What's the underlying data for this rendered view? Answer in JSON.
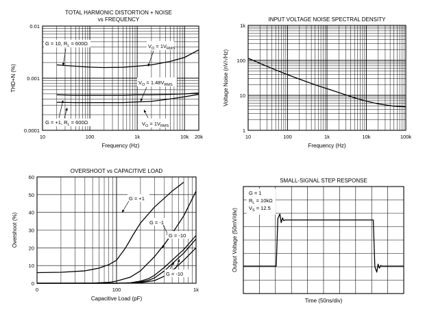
{
  "chart_data": [
    {
      "id": "thd",
      "type": "line",
      "title": "TOTAL HARMONIC DISTORTION + NOISE",
      "subtitle": "vs FREQUENCY",
      "xlabel": "Frequency (Hz)",
      "ylabel": "THD+N (%)",
      "x_scale": "log",
      "y_scale": "log",
      "xlim": [
        10,
        20000
      ],
      "ylim": [
        0.0001,
        0.01
      ],
      "x_ticks": [
        {
          "v": 10,
          "t": "10"
        },
        {
          "v": 100,
          "t": "100"
        },
        {
          "v": 1000,
          "t": "1k"
        },
        {
          "v": 10000,
          "t": "10k"
        },
        {
          "v": 20000,
          "t": "20k"
        }
      ],
      "y_ticks": [
        {
          "v": 0.0001,
          "t": "0.0001"
        },
        {
          "v": 0.001,
          "t": "0.001"
        },
        {
          "v": 0.01,
          "t": "0.01"
        }
      ],
      "grid": true,
      "series": [
        {
          "x": [
            20,
            50,
            100,
            200,
            500,
            1000,
            2000,
            5000,
            10000,
            20000
          ],
          "y": [
            0.0018,
            0.0017,
            0.00163,
            0.0016,
            0.00162,
            0.0017,
            0.0018,
            0.0021,
            0.0025,
            0.0035
          ]
        },
        {
          "x": [
            20,
            50,
            100,
            200,
            500,
            1000,
            2000,
            5000,
            10000,
            20000
          ],
          "y": [
            0.00048,
            0.00047,
            0.00047,
            0.00047,
            0.00047,
            0.00048,
            0.00048,
            0.00049,
            0.0005,
            0.00052
          ]
        },
        {
          "x": [
            20,
            50,
            100,
            200,
            500,
            1000,
            2000,
            5000,
            10000,
            20000
          ],
          "y": [
            0.000345,
            0.00034,
            0.00034,
            0.00034,
            0.00034,
            0.00035,
            0.00036,
            0.0004,
            0.00044,
            0.00049
          ]
        }
      ],
      "annotations": [
        {
          "key": "a1",
          "parts": [
            {
              "t": "G = 10, R"
            },
            {
              "t": "L",
              "sub": true
            },
            {
              "t": " = 600Ω"
            }
          ]
        },
        {
          "key": "a2",
          "parts": [
            {
              "t": "V"
            },
            {
              "t": "O",
              "sub": true
            },
            {
              "t": " = 1V"
            },
            {
              "t": "RMS",
              "sub": true
            }
          ]
        },
        {
          "key": "a3",
          "parts": [
            {
              "t": "V"
            },
            {
              "t": "O",
              "sub": true
            },
            {
              "t": " = 1.48V"
            },
            {
              "t": "RMS",
              "sub": true
            }
          ]
        },
        {
          "key": "a4",
          "parts": [
            {
              "t": "G = +1, R"
            },
            {
              "t": "L",
              "sub": true
            },
            {
              "t": " = 600Ω"
            }
          ]
        },
        {
          "key": "a5",
          "parts": [
            {
              "t": "V"
            },
            {
              "t": "O",
              "sub": true
            },
            {
              "t": " = 1V"
            },
            {
              "t": "RMS",
              "sub": true
            }
          ]
        }
      ]
    },
    {
      "id": "noise",
      "type": "line",
      "title": "INPUT VOLTAGE NOISE SPECTRAL DENSITY",
      "xlabel": "Frequency (Hz)",
      "ylabel": "Voltage Noise (nV/√Hz)",
      "x_scale": "log",
      "y_scale": "log",
      "xlim": [
        10,
        100000
      ],
      "ylim": [
        1,
        1000
      ],
      "x_ticks": [
        {
          "v": 10,
          "t": "10"
        },
        {
          "v": 100,
          "t": "100"
        },
        {
          "v": 1000,
          "t": "1k"
        },
        {
          "v": 10000,
          "t": "10k"
        },
        {
          "v": 100000,
          "t": "100k"
        }
      ],
      "y_ticks": [
        {
          "v": 1,
          "t": "1"
        },
        {
          "v": 10,
          "t": "10"
        },
        {
          "v": 100,
          "t": "100"
        },
        {
          "v": 1000,
          "t": "1k"
        }
      ],
      "grid": true,
      "series": [
        {
          "x": [
            10,
            20,
            50,
            100,
            200,
            500,
            1000,
            2000,
            5000,
            10000,
            20000,
            50000,
            100000
          ],
          "y": [
            115,
            82,
            53,
            39,
            29,
            20,
            15.5,
            12,
            8.5,
            6.8,
            5.7,
            4.9,
            4.7
          ]
        }
      ]
    },
    {
      "id": "overshoot",
      "type": "line",
      "title": "OVERSHOOT vs CAPACITIVE LOAD",
      "xlabel": "Capacitive Load (pF)",
      "ylabel": "Overshoot (%)",
      "x_scale": "log",
      "y_scale": "linear",
      "xlim": [
        10,
        1000
      ],
      "ylim": [
        0,
        60
      ],
      "x_ticks": [
        {
          "v": 10,
          "t": "0"
        },
        {
          "v": 100,
          "t": "100"
        },
        {
          "v": 1000,
          "t": "1k"
        }
      ],
      "y_ticks": [
        {
          "v": 0,
          "t": "0"
        },
        {
          "v": 10,
          "t": "10"
        },
        {
          "v": 20,
          "t": "20"
        },
        {
          "v": 30,
          "t": "30"
        },
        {
          "v": 40,
          "t": "40"
        },
        {
          "v": 50,
          "t": "50"
        },
        {
          "v": 60,
          "t": "60"
        }
      ],
      "grid": true,
      "series": [
        {
          "x": [
            10,
            20,
            40,
            60,
            80,
            100,
            130,
            160,
            200,
            300,
            500,
            700
          ],
          "y": [
            6,
            6.2,
            7,
            8.5,
            10.5,
            13,
            20,
            27,
            34,
            43,
            52,
            57
          ]
        },
        {
          "x": [
            10,
            50,
            80,
            100,
            150,
            200,
            300,
            400,
            500,
            700,
            1000
          ],
          "y": [
            0,
            0.1,
            0.5,
            1.2,
            3.5,
            7,
            15,
            22,
            28,
            38,
            52
          ]
        },
        {
          "x": [
            10,
            100,
            150,
            200,
            250,
            300,
            400,
            500,
            700,
            1000
          ],
          "y": [
            0,
            0,
            0.3,
            1.2,
            2.5,
            4.5,
            9,
            13,
            19,
            27
          ]
        },
        {
          "x": [
            10,
            100,
            150,
            200,
            250,
            300,
            400,
            500,
            700,
            1000
          ],
          "y": [
            0,
            0,
            0.2,
            0.7,
            1.6,
            3,
            7,
            11,
            17,
            25
          ]
        },
        {
          "x": [
            10,
            100,
            200,
            300,
            400,
            500,
            700,
            1000
          ],
          "y": [
            0,
            0,
            0.3,
            1.5,
            4,
            7,
            13,
            20
          ]
        }
      ],
      "annotations": [
        {
          "key": "b1",
          "parts": [
            {
              "t": "G = +1"
            }
          ]
        },
        {
          "key": "b2",
          "parts": [
            {
              "t": "G = -1"
            }
          ]
        },
        {
          "key": "b3",
          "parts": [
            {
              "t": "G = -10"
            }
          ]
        },
        {
          "key": "b4",
          "parts": [
            {
              "t": "G = -10"
            }
          ]
        }
      ]
    },
    {
      "id": "step",
      "type": "line",
      "title": "SMALL-SIGNAL STEP RESPONSE",
      "xlabel": "Time (50ns/div)",
      "ylabel": "Output Voltage (50mV/div)",
      "grid": true,
      "x_divisions": 10,
      "y_divisions": 8,
      "series": [
        {
          "x_div": [
            0,
            2.05,
            2.15,
            2.28,
            2.36,
            2.44,
            2.52,
            2.6,
            2.7,
            8.1,
            8.2,
            8.32,
            8.4,
            8.48,
            8.56,
            8.64,
            8.72,
            10
          ],
          "y_div": [
            2.05,
            2.05,
            5.6,
            5.95,
            5.3,
            5.65,
            5.45,
            5.5,
            5.5,
            5.5,
            2.0,
            1.6,
            2.2,
            1.9,
            2.1,
            2.05,
            2.05,
            2.05
          ]
        }
      ],
      "annotations": [
        {
          "key": "c1",
          "parts": [
            {
              "t": "G = 1"
            }
          ]
        },
        {
          "key": "c2",
          "parts": [
            {
              "t": "R"
            },
            {
              "t": "L",
              "sub": true
            },
            {
              "t": " = 10kΩ"
            }
          ]
        },
        {
          "key": "c3",
          "parts": [
            {
              "t": "V"
            },
            {
              "t": "S",
              "sub": true
            },
            {
              "t": " = 12.5"
            }
          ]
        }
      ]
    }
  ]
}
